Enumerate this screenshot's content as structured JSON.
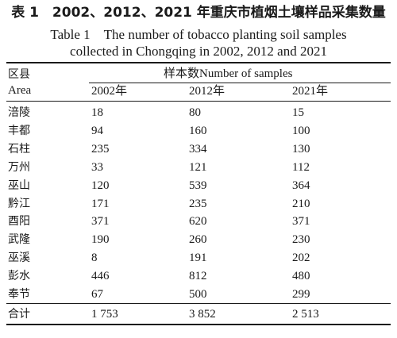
{
  "caption": {
    "chinese": "表 1　2002、2012、2021 年重庆市植烟土壤样品采集数量",
    "english_line1": "Table 1　The number of tobacco planting soil samples",
    "english_line2": "collected in Chongqing in 2002, 2012 and 2021"
  },
  "table": {
    "header": {
      "area_cn": "区县",
      "area_en": "Area",
      "samples": "样本数Number of samples",
      "years": [
        "2002年",
        "2012年",
        "2021年"
      ]
    },
    "rows": [
      {
        "area": "涪陵",
        "v2002": "18",
        "v2012": "80",
        "v2021": "15"
      },
      {
        "area": "丰都",
        "v2002": "94",
        "v2012": "160",
        "v2021": "100"
      },
      {
        "area": "石柱",
        "v2002": "235",
        "v2012": "334",
        "v2021": "130"
      },
      {
        "area": "万州",
        "v2002": "33",
        "v2012": "121",
        "v2021": "112"
      },
      {
        "area": "巫山",
        "v2002": "120",
        "v2012": "539",
        "v2021": "364"
      },
      {
        "area": "黔江",
        "v2002": "171",
        "v2012": "235",
        "v2021": "210"
      },
      {
        "area": "酉阳",
        "v2002": "371",
        "v2012": "620",
        "v2021": "371"
      },
      {
        "area": "武隆",
        "v2002": "190",
        "v2012": "260",
        "v2021": "230"
      },
      {
        "area": "巫溪",
        "v2002": "8",
        "v2012": "191",
        "v2021": "202"
      },
      {
        "area": "彭水",
        "v2002": "446",
        "v2012": "812",
        "v2021": "480"
      },
      {
        "area": "奉节",
        "v2002": "67",
        "v2012": "500",
        "v2021": "299"
      }
    ],
    "total": {
      "area": "合计",
      "v2002": "1 753",
      "v2012": "3 852",
      "v2021": "2 513"
    }
  }
}
